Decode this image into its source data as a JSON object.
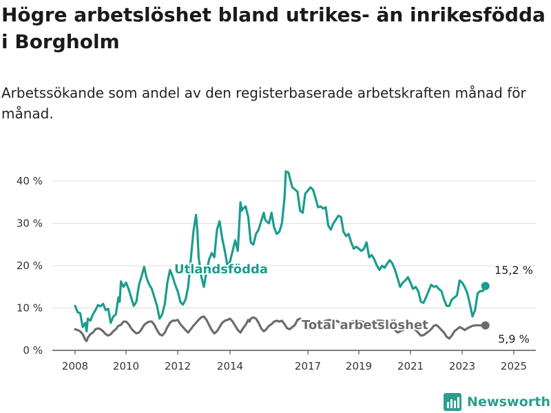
{
  "title": "Högre arbetslöshet bland utrikes- än inrikesfödda i Borgholm",
  "subtitle": "Arbetssökande som andel av den registerbaserade arbetskraften månad för månad.",
  "brand": {
    "name": "Newsworthy",
    "icon": "newsworthy-logo-icon",
    "color": "#2a9d8f"
  },
  "chart_data": {
    "type": "line",
    "title": "Högre arbetslöshet bland utrikes- än inrikesfödda i Borgholm",
    "subtitle": "Arbetssökande som andel av den registerbaserade arbetskraften månad för månad.",
    "xlabel": "",
    "ylabel": "",
    "x_ticks": [
      "2008",
      "2010",
      "2012",
      "2014",
      "2017",
      "2019",
      "2021",
      "2023",
      "2025"
    ],
    "y_ticks": [
      "0 %",
      "10 %",
      "20 %",
      "30 %",
      "40 %"
    ],
    "ylim": [
      0,
      42
    ],
    "grid": "horizontal",
    "series": [
      {
        "name": "Utlandsfödda",
        "color": "#1a9c8e",
        "end_label": "15,2 %",
        "points": [
          [
            2008.0,
            10.5
          ],
          [
            2008.1,
            9.0
          ],
          [
            2008.2,
            8.8
          ],
          [
            2008.3,
            5.5
          ],
          [
            2008.4,
            6.5
          ],
          [
            2008.45,
            4.5
          ],
          [
            2008.5,
            7.5
          ],
          [
            2008.6,
            7.0
          ],
          [
            2008.7,
            8.5
          ],
          [
            2008.8,
            9.5
          ],
          [
            2008.9,
            10.7
          ],
          [
            2009.0,
            10.4
          ],
          [
            2009.1,
            11.0
          ],
          [
            2009.2,
            9.5
          ],
          [
            2009.3,
            9.8
          ],
          [
            2009.4,
            6.5
          ],
          [
            2009.5,
            8.0
          ],
          [
            2009.6,
            8.5
          ],
          [
            2009.7,
            12.5
          ],
          [
            2009.75,
            11.5
          ],
          [
            2009.8,
            16.3
          ],
          [
            2009.9,
            15.0
          ],
          [
            2010.0,
            16.0
          ],
          [
            2010.1,
            14.5
          ],
          [
            2010.2,
            12.5
          ],
          [
            2010.3,
            10.5
          ],
          [
            2010.4,
            11.5
          ],
          [
            2010.5,
            15.5
          ],
          [
            2010.6,
            17.5
          ],
          [
            2010.7,
            19.7
          ],
          [
            2010.8,
            17.0
          ],
          [
            2010.9,
            15.5
          ],
          [
            2011.0,
            14.5
          ],
          [
            2011.1,
            12.5
          ],
          [
            2011.2,
            10.5
          ],
          [
            2011.3,
            7.5
          ],
          [
            2011.4,
            8.5
          ],
          [
            2011.5,
            11.0
          ],
          [
            2011.6,
            16.0
          ],
          [
            2011.7,
            19.0
          ],
          [
            2011.8,
            17.5
          ],
          [
            2011.9,
            15.5
          ],
          [
            2012.0,
            14.0
          ],
          [
            2012.1,
            11.5
          ],
          [
            2012.2,
            10.8
          ],
          [
            2012.3,
            12.0
          ],
          [
            2012.4,
            15.0
          ],
          [
            2012.5,
            21.5
          ],
          [
            2012.6,
            28.0
          ],
          [
            2012.7,
            32.0
          ],
          [
            2012.75,
            28.5
          ],
          [
            2012.8,
            22.0
          ],
          [
            2012.9,
            17.5
          ],
          [
            2013.0,
            15.0
          ],
          [
            2013.1,
            18.5
          ],
          [
            2013.2,
            21.5
          ],
          [
            2013.3,
            23.0
          ],
          [
            2013.4,
            22.0
          ],
          [
            2013.5,
            28.5
          ],
          [
            2013.6,
            30.5
          ],
          [
            2013.7,
            26.5
          ],
          [
            2013.8,
            23.5
          ],
          [
            2013.9,
            20.0
          ],
          [
            2014.0,
            21.0
          ],
          [
            2014.1,
            23.5
          ],
          [
            2014.2,
            26.0
          ],
          [
            2014.3,
            23.5
          ],
          [
            2014.4,
            35.0
          ],
          [
            2014.45,
            33.0
          ],
          [
            2014.5,
            33.5
          ],
          [
            2014.6,
            34.0
          ],
          [
            2014.7,
            31.5
          ],
          [
            2014.8,
            25.5
          ],
          [
            2014.9,
            25.0
          ],
          [
            2015.0,
            27.5
          ],
          [
            2015.1,
            28.5
          ],
          [
            2015.2,
            30.5
          ],
          [
            2015.3,
            32.5
          ],
          [
            2015.35,
            31.0
          ],
          [
            2015.4,
            30.5
          ],
          [
            2015.5,
            30.0
          ],
          [
            2015.6,
            32.5
          ],
          [
            2015.7,
            29.0
          ],
          [
            2015.8,
            27.5
          ],
          [
            2015.9,
            28.0
          ],
          [
            2016.0,
            30.0
          ],
          [
            2016.1,
            36.0
          ],
          [
            2016.15,
            42.3
          ],
          [
            2016.25,
            42.0
          ],
          [
            2016.4,
            38.5
          ],
          [
            2016.6,
            37.5
          ],
          [
            2016.7,
            33.0
          ],
          [
            2016.8,
            32.5
          ],
          [
            2016.9,
            37.0
          ],
          [
            2017.1,
            38.5
          ],
          [
            2017.2,
            38.0
          ],
          [
            2017.3,
            36.0
          ],
          [
            2017.4,
            33.8
          ],
          [
            2017.5,
            34.0
          ],
          [
            2017.6,
            33.5
          ],
          [
            2017.7,
            33.8
          ],
          [
            2017.8,
            29.5
          ],
          [
            2017.9,
            28.5
          ],
          [
            2018.0,
            30.0
          ],
          [
            2018.2,
            31.8
          ],
          [
            2018.3,
            31.5
          ],
          [
            2018.4,
            28.0
          ],
          [
            2018.5,
            27.0
          ],
          [
            2018.6,
            27.5
          ],
          [
            2018.7,
            25.5
          ],
          [
            2018.8,
            24.0
          ],
          [
            2018.9,
            24.5
          ],
          [
            2019.0,
            24.0
          ],
          [
            2019.1,
            23.5
          ],
          [
            2019.2,
            24.0
          ],
          [
            2019.3,
            25.5
          ],
          [
            2019.4,
            22.0
          ],
          [
            2019.5,
            22.5
          ],
          [
            2019.6,
            21.5
          ],
          [
            2019.7,
            20.0
          ],
          [
            2019.8,
            19.0
          ],
          [
            2019.9,
            20.0
          ],
          [
            2020.0,
            19.5
          ],
          [
            2020.1,
            20.5
          ],
          [
            2020.2,
            21.3
          ],
          [
            2020.3,
            20.5
          ],
          [
            2020.4,
            19.0
          ],
          [
            2020.5,
            17.0
          ],
          [
            2020.6,
            15.0
          ],
          [
            2020.7,
            16.0
          ],
          [
            2020.8,
            16.5
          ],
          [
            2020.9,
            17.3
          ],
          [
            2021.0,
            16.0
          ],
          [
            2021.1,
            14.5
          ],
          [
            2021.2,
            15.0
          ],
          [
            2021.3,
            14.0
          ],
          [
            2021.4,
            11.5
          ],
          [
            2021.5,
            11.2
          ],
          [
            2021.6,
            12.5
          ],
          [
            2021.7,
            14.0
          ],
          [
            2021.8,
            15.5
          ],
          [
            2021.9,
            15.0
          ],
          [
            2022.0,
            15.2
          ],
          [
            2022.1,
            14.5
          ],
          [
            2022.2,
            14.0
          ],
          [
            2022.3,
            12.0
          ],
          [
            2022.4,
            10.5
          ],
          [
            2022.5,
            10.5
          ],
          [
            2022.6,
            12.0
          ],
          [
            2022.7,
            12.5
          ],
          [
            2022.8,
            13.0
          ],
          [
            2022.9,
            16.5
          ],
          [
            2023.0,
            16.0
          ],
          [
            2023.1,
            15.0
          ],
          [
            2023.2,
            13.5
          ],
          [
            2023.3,
            11.0
          ],
          [
            2023.4,
            8.0
          ],
          [
            2023.5,
            9.5
          ],
          [
            2023.6,
            13.5
          ],
          [
            2023.7,
            14.0
          ],
          [
            2023.8,
            14.0
          ],
          [
            2023.9,
            15.2
          ]
        ]
      },
      {
        "name": "Total arbetslöshet",
        "color": "#6b6b6b",
        "end_label": "5,9 %",
        "points": [
          [
            2008.0,
            5.0
          ],
          [
            2008.1,
            4.8
          ],
          [
            2008.2,
            4.5
          ],
          [
            2008.3,
            3.8
          ],
          [
            2008.4,
            2.5
          ],
          [
            2008.45,
            2.2
          ],
          [
            2008.5,
            3.0
          ],
          [
            2008.6,
            3.8
          ],
          [
            2008.7,
            4.2
          ],
          [
            2008.8,
            5.0
          ],
          [
            2008.9,
            5.2
          ],
          [
            2009.0,
            5.0
          ],
          [
            2009.1,
            4.5
          ],
          [
            2009.2,
            3.8
          ],
          [
            2009.3,
            3.5
          ],
          [
            2009.4,
            3.8
          ],
          [
            2009.5,
            4.5
          ],
          [
            2009.6,
            5.0
          ],
          [
            2009.7,
            5.8
          ],
          [
            2009.8,
            6.0
          ],
          [
            2009.9,
            6.8
          ],
          [
            2010.0,
            6.8
          ],
          [
            2010.1,
            6.2
          ],
          [
            2010.2,
            5.2
          ],
          [
            2010.3,
            4.5
          ],
          [
            2010.4,
            4.0
          ],
          [
            2010.5,
            4.2
          ],
          [
            2010.6,
            5.0
          ],
          [
            2010.7,
            6.0
          ],
          [
            2010.8,
            6.5
          ],
          [
            2010.9,
            6.8
          ],
          [
            2011.0,
            6.8
          ],
          [
            2011.1,
            6.0
          ],
          [
            2011.2,
            4.8
          ],
          [
            2011.3,
            3.8
          ],
          [
            2011.4,
            3.5
          ],
          [
            2011.5,
            4.2
          ],
          [
            2011.6,
            5.5
          ],
          [
            2011.7,
            6.5
          ],
          [
            2011.8,
            7.0
          ],
          [
            2011.9,
            7.0
          ],
          [
            2012.0,
            7.2
          ],
          [
            2012.1,
            6.2
          ],
          [
            2012.2,
            5.5
          ],
          [
            2012.3,
            4.8
          ],
          [
            2012.4,
            4.2
          ],
          [
            2012.5,
            5.0
          ],
          [
            2012.6,
            5.8
          ],
          [
            2012.7,
            6.5
          ],
          [
            2012.8,
            7.2
          ],
          [
            2012.9,
            7.8
          ],
          [
            2013.0,
            8.0
          ],
          [
            2013.1,
            7.2
          ],
          [
            2013.2,
            6.0
          ],
          [
            2013.3,
            4.8
          ],
          [
            2013.4,
            4.0
          ],
          [
            2013.5,
            4.5
          ],
          [
            2013.6,
            5.5
          ],
          [
            2013.7,
            6.5
          ],
          [
            2013.8,
            7.0
          ],
          [
            2013.9,
            7.2
          ],
          [
            2014.0,
            7.5
          ],
          [
            2014.1,
            6.8
          ],
          [
            2014.2,
            5.8
          ],
          [
            2014.3,
            4.8
          ],
          [
            2014.4,
            4.2
          ],
          [
            2014.5,
            5.2
          ],
          [
            2014.6,
            6.0
          ],
          [
            2014.7,
            7.2
          ],
          [
            2014.75,
            6.8
          ],
          [
            2014.8,
            7.5
          ],
          [
            2014.9,
            7.8
          ],
          [
            2015.0,
            7.5
          ],
          [
            2015.1,
            6.5
          ],
          [
            2015.2,
            5.2
          ],
          [
            2015.3,
            4.5
          ],
          [
            2015.4,
            5.0
          ],
          [
            2015.5,
            5.8
          ],
          [
            2015.6,
            6.2
          ],
          [
            2015.7,
            6.8
          ],
          [
            2015.8,
            7.0
          ],
          [
            2015.9,
            6.8
          ],
          [
            2016.0,
            7.0
          ],
          [
            2016.1,
            6.2
          ],
          [
            2016.2,
            5.2
          ],
          [
            2016.3,
            5.0
          ],
          [
            2016.4,
            5.5
          ],
          [
            2016.5,
            6.0
          ],
          [
            2016.6,
            7.2
          ],
          [
            2016.7,
            7.5
          ],
          [
            2016.8,
            7.0
          ],
          [
            2016.9,
            6.2
          ],
          [
            2017.0,
            5.5
          ],
          [
            2017.1,
            5.0
          ],
          [
            2017.3,
            5.5
          ],
          [
            2017.5,
            6.5
          ],
          [
            2017.7,
            7.0
          ],
          [
            2017.9,
            7.2
          ],
          [
            2018.1,
            7.0
          ],
          [
            2018.3,
            6.5
          ],
          [
            2018.5,
            6.0
          ],
          [
            2018.7,
            6.8
          ],
          [
            2018.9,
            7.0
          ],
          [
            2019.1,
            6.8
          ],
          [
            2019.3,
            6.5
          ],
          [
            2019.5,
            6.5
          ],
          [
            2019.7,
            7.0
          ],
          [
            2019.9,
            7.0
          ],
          [
            2020.1,
            6.5
          ],
          [
            2020.2,
            5.8
          ],
          [
            2020.3,
            5.0
          ],
          [
            2020.4,
            4.8
          ],
          [
            2020.5,
            4.2
          ],
          [
            2020.6,
            4.5
          ],
          [
            2020.7,
            4.8
          ],
          [
            2020.8,
            5.2
          ],
          [
            2020.9,
            5.5
          ],
          [
            2021.0,
            5.8
          ],
          [
            2021.1,
            5.2
          ],
          [
            2021.2,
            4.8
          ],
          [
            2021.3,
            4.2
          ],
          [
            2021.4,
            3.5
          ],
          [
            2021.5,
            3.6
          ],
          [
            2021.6,
            4.0
          ],
          [
            2021.7,
            4.5
          ],
          [
            2021.8,
            5.0
          ],
          [
            2021.9,
            5.8
          ],
          [
            2022.0,
            6.0
          ],
          [
            2022.1,
            5.5
          ],
          [
            2022.2,
            4.8
          ],
          [
            2022.3,
            4.2
          ],
          [
            2022.4,
            3.2
          ],
          [
            2022.5,
            2.8
          ],
          [
            2022.6,
            3.5
          ],
          [
            2022.7,
            4.5
          ],
          [
            2022.8,
            5.0
          ],
          [
            2022.9,
            5.5
          ],
          [
            2023.0,
            5.2
          ],
          [
            2023.1,
            4.8
          ],
          [
            2023.2,
            5.2
          ],
          [
            2023.3,
            5.5
          ],
          [
            2023.4,
            5.8
          ],
          [
            2023.5,
            5.9
          ],
          [
            2023.9,
            5.9
          ]
        ]
      }
    ]
  }
}
